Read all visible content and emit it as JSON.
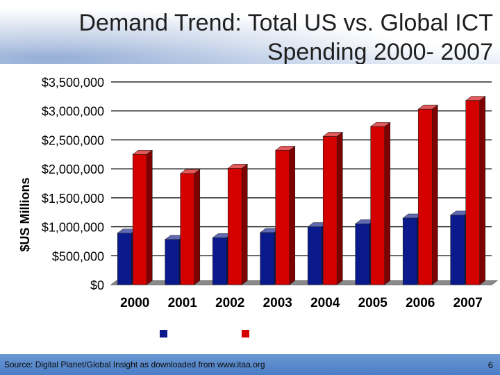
{
  "slide": {
    "title": "Demand Trend: Total US vs. Global ICT Spending 2000- 2007",
    "source": "Source:  Digital Planet/Global Insight as downloaded from www.itaa.org",
    "page_number": "6"
  },
  "colors": {
    "us_series": "#0a1a8c",
    "global_series": "#d40000",
    "floor": "#8a8a8a"
  },
  "chart_data": {
    "type": "bar",
    "categories": [
      "2000",
      "2001",
      "2002",
      "2003",
      "2004",
      "2005",
      "2006",
      "2007"
    ],
    "series": [
      {
        "name": "",
        "values": [
          890000,
          780000,
          810000,
          900000,
          1000000,
          1050000,
          1150000,
          1200000
        ]
      },
      {
        "name": "",
        "values": [
          2250000,
          1920000,
          2010000,
          2320000,
          2560000,
          2730000,
          3030000,
          3180000
        ]
      }
    ],
    "yticks": [
      "$0",
      "$500,000",
      "$1,000,000",
      "$1,500,000",
      "$2,000,000",
      "$2,500,000",
      "$3,000,000",
      "$3,500,000"
    ],
    "ylim": [
      0,
      3500000
    ],
    "ylabel": "$US Millions",
    "xlabel": "",
    "title": "",
    "grid": true,
    "legend_position": "bottom",
    "style": "3d-bar"
  }
}
